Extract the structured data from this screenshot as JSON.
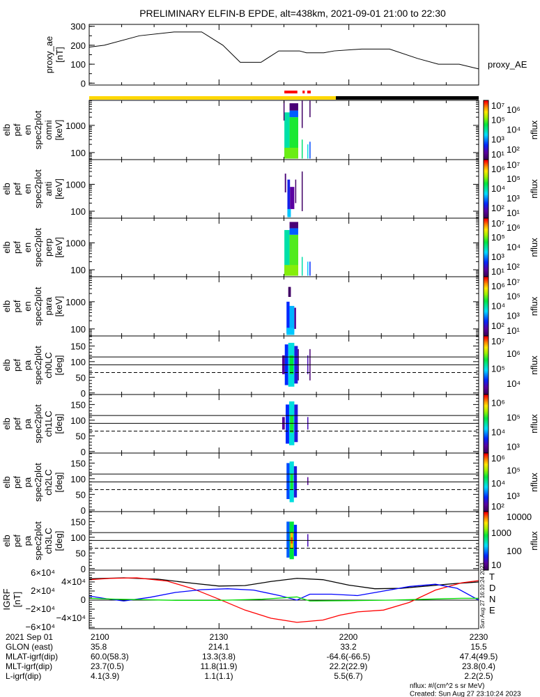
{
  "title": "PRELIMINARY ELFIN-B EPDE, alt=438km, 2021-09-01 21:00 to 22:30",
  "colors": {
    "sci_zone": "#ffd700",
    "no_data": "#000000",
    "marker": "#ff0000",
    "D": "#ff0000",
    "N": "#0000ff",
    "E": "#00dd00",
    "total": "#000000"
  },
  "chart_data": [
    {
      "type": "line",
      "name": "proxy_ae",
      "ylabel": [
        "proxy_ae",
        "[nT]"
      ],
      "legend": "proxy_AE",
      "ylim": [
        -10,
        310
      ],
      "yticks": [
        "0",
        "100",
        "200",
        "300"
      ],
      "ytick_values": [
        0,
        100,
        200,
        300
      ],
      "x_minutes": [
        0,
        3.5,
        11.6,
        19.6,
        26,
        30.9,
        34.9,
        39.7,
        43.8,
        48.6,
        50.2,
        54.2,
        56.6,
        63,
        69.4,
        75.9,
        80.7,
        85.5,
        90
      ],
      "values": [
        190,
        200,
        250,
        270,
        270,
        200,
        110,
        110,
        170,
        170,
        160,
        160,
        170,
        180,
        180,
        130,
        100,
        100,
        75
      ]
    },
    {
      "type": "bar",
      "name": "status_bar",
      "segments": [
        {
          "from": 0,
          "to": 57,
          "color": "#ffd700"
        },
        {
          "from": 57,
          "to": 90,
          "color": "#000000"
        }
      ],
      "markers": [
        [
          45.1,
          48.1
        ],
        [
          49.3,
          49.8
        ],
        [
          50.4,
          51.2
        ]
      ]
    },
    {
      "type": "heatmap",
      "name": "omni",
      "ylabel": [
        "elb",
        "pef",
        "en",
        "spec2plot",
        "omni",
        "[keV]"
      ],
      "scale": "log",
      "ylim": [
        55,
        8300
      ],
      "yticks": [
        "100",
        "1000"
      ],
      "ytick_values": [
        100,
        1000
      ],
      "colorbar": {
        "label": "nflux",
        "log_range": [
          1,
          7
        ],
        "ticks": [
          [
            "10",
            "7"
          ],
          [
            "10",
            "6"
          ],
          [
            "10",
            "5"
          ],
          [
            "10",
            "4"
          ],
          [
            "10",
            "3"
          ],
          [
            "10",
            "2"
          ],
          [
            "10",
            "1"
          ]
        ]
      },
      "cells": [
        [
          45.1,
          46.3,
          60,
          3000,
          0.5
        ],
        [
          46.3,
          48.3,
          60,
          2000,
          0.62
        ],
        [
          46.3,
          48.3,
          2000,
          3500,
          0.3
        ],
        [
          45.1,
          48.3,
          60,
          150,
          0.68
        ],
        [
          46.3,
          48.3,
          3500,
          6500,
          0.05
        ],
        [
          44.9,
          45.1,
          1500,
          8000,
          0.02
        ],
        [
          49.1,
          49.3,
          60,
          300,
          0.55
        ],
        [
          49.1,
          49.3,
          800,
          8000,
          0.02
        ],
        [
          50.4,
          50.6,
          60,
          200,
          0.45
        ],
        [
          50.9,
          51.1,
          60,
          250,
          0.28
        ],
        [
          50.9,
          51.1,
          2000,
          8000,
          0.02
        ]
      ]
    },
    {
      "type": "heatmap",
      "name": "anti",
      "ylabel": [
        "elb",
        "pef",
        "en",
        "spec2plot",
        "anti",
        "[keV]"
      ],
      "scale": "log",
      "ylim": [
        55,
        8300
      ],
      "yticks": [
        "100",
        "1000"
      ],
      "ytick_values": [
        100,
        1000
      ],
      "colorbar": {
        "label": "nflux",
        "log_range": [
          1,
          7
        ],
        "ticks": [
          [
            "10",
            "7"
          ],
          [
            "10",
            "6"
          ],
          [
            "10",
            "5"
          ],
          [
            "10",
            "4"
          ],
          [
            "10",
            "3"
          ],
          [
            "10",
            "2"
          ],
          [
            "10",
            "1"
          ]
        ]
      },
      "cells": [
        [
          45.2,
          45.5,
          500,
          2500,
          0.05
        ],
        [
          45.8,
          46.4,
          70,
          1500,
          0.22
        ],
        [
          46.4,
          47.4,
          120,
          800,
          0.12
        ],
        [
          45.8,
          46.6,
          60,
          120,
          0.4
        ],
        [
          47.6,
          47.8,
          200,
          1500,
          0.03
        ],
        [
          49.1,
          49.3,
          100,
          3000,
          0.02
        ]
      ]
    },
    {
      "type": "heatmap",
      "name": "perp",
      "ylabel": [
        "elb",
        "pef",
        "en",
        "spec2plot",
        "perp",
        "[keV]"
      ],
      "scale": "log",
      "ylim": [
        55,
        8300
      ],
      "yticks": [
        "100",
        "1000"
      ],
      "ytick_values": [
        100,
        1000
      ],
      "colorbar": {
        "label": "nflux",
        "log_range": [
          1,
          7
        ],
        "ticks": [
          [
            "10",
            "7"
          ],
          [
            "10",
            "6"
          ],
          [
            "10",
            "5"
          ],
          [
            "10",
            "4"
          ],
          [
            "10",
            "3"
          ],
          [
            "10",
            "2"
          ],
          [
            "10",
            "1"
          ]
        ]
      },
      "cells": [
        [
          45.1,
          46.3,
          60,
          3000,
          0.5
        ],
        [
          46.3,
          48.3,
          60,
          2000,
          0.66
        ],
        [
          46.3,
          48.3,
          2000,
          3500,
          0.3
        ],
        [
          45.1,
          48.3,
          60,
          150,
          0.7
        ],
        [
          46.3,
          48.3,
          3500,
          6000,
          0.05
        ],
        [
          49.1,
          49.3,
          60,
          300,
          0.5
        ],
        [
          50.4,
          50.6,
          60,
          200,
          0.4
        ],
        [
          50.9,
          51.1,
          60,
          200,
          0.25
        ]
      ]
    },
    {
      "type": "heatmap",
      "name": "para",
      "ylabel": [
        "elb",
        "pef",
        "en",
        "spec2plot",
        "para",
        "[keV]"
      ],
      "scale": "log",
      "ylim": [
        55,
        8300
      ],
      "yticks": [
        "100",
        "1000"
      ],
      "ytick_values": [
        100,
        1000
      ],
      "colorbar": {
        "label": "nflux",
        "log_range": [
          1,
          7
        ],
        "ticks": [
          [
            "10",
            "7"
          ],
          [
            "10",
            "6"
          ],
          [
            "10",
            "5"
          ],
          [
            "10",
            "4"
          ],
          [
            "10",
            "3"
          ],
          [
            "10",
            "2"
          ],
          [
            "10",
            "1"
          ]
        ]
      },
      "cells": [
        [
          45.6,
          46.3,
          70,
          1000,
          0.25
        ],
        [
          46.3,
          47.4,
          80,
          700,
          0.38
        ],
        [
          45.6,
          47.4,
          60,
          110,
          0.4
        ],
        [
          47.4,
          47.8,
          100,
          600,
          0.1
        ],
        [
          46.0,
          46.6,
          1500,
          3500,
          0.02
        ]
      ]
    },
    {
      "type": "heatmap",
      "name": "ch0LC",
      "ylabel": [
        "elb",
        "pef",
        "pa",
        "spec2plot",
        "ch0LC",
        "[deg]"
      ],
      "scale": "linear",
      "ylim": [
        -5,
        182
      ],
      "yticks": [
        "0",
        "50",
        "100",
        "150"
      ],
      "ytick_values": [
        0,
        50,
        100,
        150
      ],
      "lines": [
        115,
        90
      ],
      "dashed_lines": [
        65
      ],
      "colorbar": {
        "label": "nflux",
        "log_range": [
          3.3,
          7.2
        ],
        "ticks": [
          [
            "10",
            "7"
          ],
          [
            "10",
            "6"
          ],
          [
            "10",
            "5"
          ],
          [
            "10",
            "4"
          ]
        ]
      },
      "cells": [
        [
          44.6,
          45.2,
          60,
          120,
          0.1
        ],
        [
          45.2,
          46.0,
          25,
          155,
          0.25
        ],
        [
          46.0,
          47.4,
          20,
          160,
          0.45
        ],
        [
          46.3,
          47.2,
          60,
          120,
          0.6
        ],
        [
          47.4,
          48.2,
          30,
          150,
          0.2
        ],
        [
          48.2,
          48.4,
          40,
          140,
          0.05
        ],
        [
          50.4,
          50.6,
          60,
          120,
          0.15
        ],
        [
          50.9,
          51.1,
          40,
          140,
          0.05
        ]
      ]
    },
    {
      "type": "heatmap",
      "name": "ch1LC",
      "ylabel": [
        "elb",
        "pef",
        "pa",
        "spec2plot",
        "ch1LC",
        "[deg]"
      ],
      "scale": "linear",
      "ylim": [
        -5,
        182
      ],
      "yticks": [
        "0",
        "50",
        "100",
        "150"
      ],
      "ytick_values": [
        0,
        50,
        100,
        150
      ],
      "lines": [
        115,
        90
      ],
      "dashed_lines": [
        65
      ],
      "colorbar": {
        "label": "nflux",
        "log_range": [
          2.6,
          6.6
        ],
        "ticks": [
          [
            "10",
            "6"
          ],
          [
            "10",
            "5"
          ],
          [
            "10",
            "4"
          ],
          [
            "10",
            "3"
          ]
        ]
      },
      "cells": [
        [
          44.6,
          45.2,
          70,
          110,
          0.1
        ],
        [
          45.4,
          46.2,
          25,
          150,
          0.25
        ],
        [
          46.2,
          47.4,
          20,
          160,
          0.45
        ],
        [
          46.4,
          47.2,
          60,
          115,
          0.62
        ],
        [
          47.4,
          48.2,
          30,
          150,
          0.2
        ],
        [
          50.4,
          50.6,
          70,
          110,
          0.15
        ]
      ]
    },
    {
      "type": "heatmap",
      "name": "ch2LC",
      "ylabel": [
        "elb",
        "pef",
        "pa",
        "spec2plot",
        "ch2LC",
        "[deg]"
      ],
      "scale": "linear",
      "ylim": [
        -5,
        182
      ],
      "yticks": [
        "0",
        "50",
        "100",
        "150"
      ],
      "ytick_values": [
        0,
        50,
        100,
        150
      ],
      "lines": [
        115,
        90
      ],
      "dashed_lines": [
        65
      ],
      "colorbar": {
        "label": "nflux",
        "log_range": [
          1.8,
          6.4
        ],
        "ticks": [
          [
            "10",
            "6"
          ],
          [
            "10",
            "5"
          ],
          [
            "10",
            "4"
          ],
          [
            "10",
            "3"
          ],
          [
            "10",
            "2"
          ]
        ]
      },
      "cells": [
        [
          45.6,
          46.3,
          35,
          150,
          0.28
        ],
        [
          46.3,
          47.3,
          25,
          155,
          0.45
        ],
        [
          46.5,
          47.1,
          65,
          115,
          0.62
        ],
        [
          47.3,
          48.0,
          40,
          140,
          0.2
        ],
        [
          50.4,
          50.6,
          80,
          105,
          0.1
        ]
      ]
    },
    {
      "type": "heatmap",
      "name": "ch3LC",
      "ylabel": [
        "elb",
        "pef",
        "pa",
        "spec2plot",
        "ch3LC",
        "[deg]"
      ],
      "scale": "linear",
      "ylim": [
        -5,
        182
      ],
      "yticks": [
        "0",
        "50",
        "100",
        "150"
      ],
      "ytick_values": [
        0,
        50,
        100,
        150
      ],
      "lines": [
        115,
        90
      ],
      "dashed_lines": [
        65
      ],
      "colorbar": {
        "label": "nflux",
        "log_range": [
          0.95,
          4.2
        ],
        "ticks": [
          [
            "10000",
            ""
          ],
          [
            "1000",
            ""
          ],
          [
            "100",
            ""
          ],
          [
            "10",
            ""
          ]
        ],
        "tick_values": [
          4,
          3,
          2,
          1
        ]
      },
      "cells": [
        [
          45.6,
          46.3,
          35,
          150,
          0.3
        ],
        [
          46.3,
          47.3,
          30,
          150,
          0.6
        ],
        [
          46.5,
          47.1,
          65,
          115,
          0.85
        ],
        [
          46.6,
          47.0,
          80,
          100,
          0.95
        ],
        [
          47.3,
          48.0,
          40,
          140,
          0.25
        ],
        [
          50.4,
          50.6,
          70,
          110,
          0.15
        ]
      ]
    },
    {
      "type": "line",
      "name": "IGRF",
      "ylabel": [
        "IGRF",
        "[nT]"
      ],
      "ylim": [
        -63000,
        66000
      ],
      "yticks": [
        [
          "6×10",
          "4"
        ],
        [
          "4×10",
          "4"
        ],
        [
          "2×10",
          "4"
        ],
        [
          "0",
          ""
        ],
        [
          "−2×10",
          "4"
        ],
        [
          "−4×10",
          "4"
        ],
        [
          "−6×10",
          "4"
        ]
      ],
      "ytick_values": [
        60000,
        40000,
        20000,
        0,
        -20000,
        -40000,
        -60000
      ],
      "legend": [
        "T",
        "D",
        "N",
        "E"
      ],
      "series": [
        {
          "name": "T",
          "x": [
            0,
            8,
            16,
            24,
            30,
            36,
            42,
            48,
            54,
            60,
            66,
            72,
            78,
            84,
            90
          ],
          "values": [
            47000,
            49000,
            46000,
            37000,
            31000,
            32000,
            41000,
            48000,
            45000,
            33000,
            25000,
            26000,
            31000,
            36000,
            40000
          ]
        },
        {
          "name": "D",
          "x": [
            0,
            5,
            11,
            18,
            24,
            30,
            36,
            42,
            48,
            54,
            58,
            62,
            68,
            74,
            80,
            86,
            90
          ],
          "values": [
            45000,
            48000,
            49000,
            42000,
            25000,
            2000,
            -22000,
            -40000,
            -49000,
            -44000,
            -33000,
            -26000,
            -22000,
            -5000,
            22000,
            38000,
            43000
          ]
        },
        {
          "name": "N",
          "x": [
            0,
            4,
            8,
            14,
            20,
            26,
            32,
            38,
            44,
            48,
            51,
            56,
            62,
            68,
            74,
            80,
            85,
            90
          ],
          "values": [
            9000,
            3000,
            -2000,
            6000,
            17000,
            23000,
            25000,
            22000,
            10000,
            0,
            13000,
            13000,
            10000,
            20000,
            30000,
            35000,
            26000,
            0
          ]
        },
        {
          "name": "E",
          "x": [
            0,
            6,
            12,
            20,
            30,
            40,
            48,
            51,
            56,
            62,
            70,
            78,
            86,
            90
          ],
          "values": [
            4000,
            2000,
            1000,
            -500,
            -600,
            2000,
            7000,
            -2000,
            -1500,
            -1000,
            0,
            2000,
            4000,
            4000
          ]
        }
      ]
    }
  ],
  "time_axis": {
    "range_minutes": [
      0,
      90
    ],
    "ticks": [
      "2100",
      "2130",
      "2200",
      "2230"
    ],
    "tick_minutes": [
      0,
      30,
      60,
      90
    ]
  },
  "ephemeris": {
    "rows": [
      {
        "label": "2021 Sep 01",
        "values": [
          "2100",
          "2130",
          "2200",
          "2230"
        ]
      },
      {
        "label": "GLON (east)",
        "values": [
          "35.8",
          "214.1",
          "33.2",
          "15.5"
        ]
      },
      {
        "label": "MLAT-igrf(dip)",
        "values": [
          "60.0(58.3)",
          "13.3(3.8)",
          "-64.6(-66.5)",
          "47.4(49.5)"
        ]
      },
      {
        "label": "MLT-igrf(dip)",
        "values": [
          "23.7(0.5)",
          "11.8(11.9)",
          "22.2(22.9)",
          "23.8(0.4)"
        ]
      },
      {
        "label": "L-igrf(dip)",
        "values": [
          "4.1(3.9)",
          "1.1(1.1)",
          "5.5(6.7)",
          "2.2(2.5)"
        ]
      }
    ]
  },
  "footer": {
    "units": "nflux: #/(cm^2 s sr MeV)",
    "created": "Created: Sun Aug 27 23:10:24 2023",
    "side_stamp": "Sun Aug 27 16:10:24 2023"
  }
}
